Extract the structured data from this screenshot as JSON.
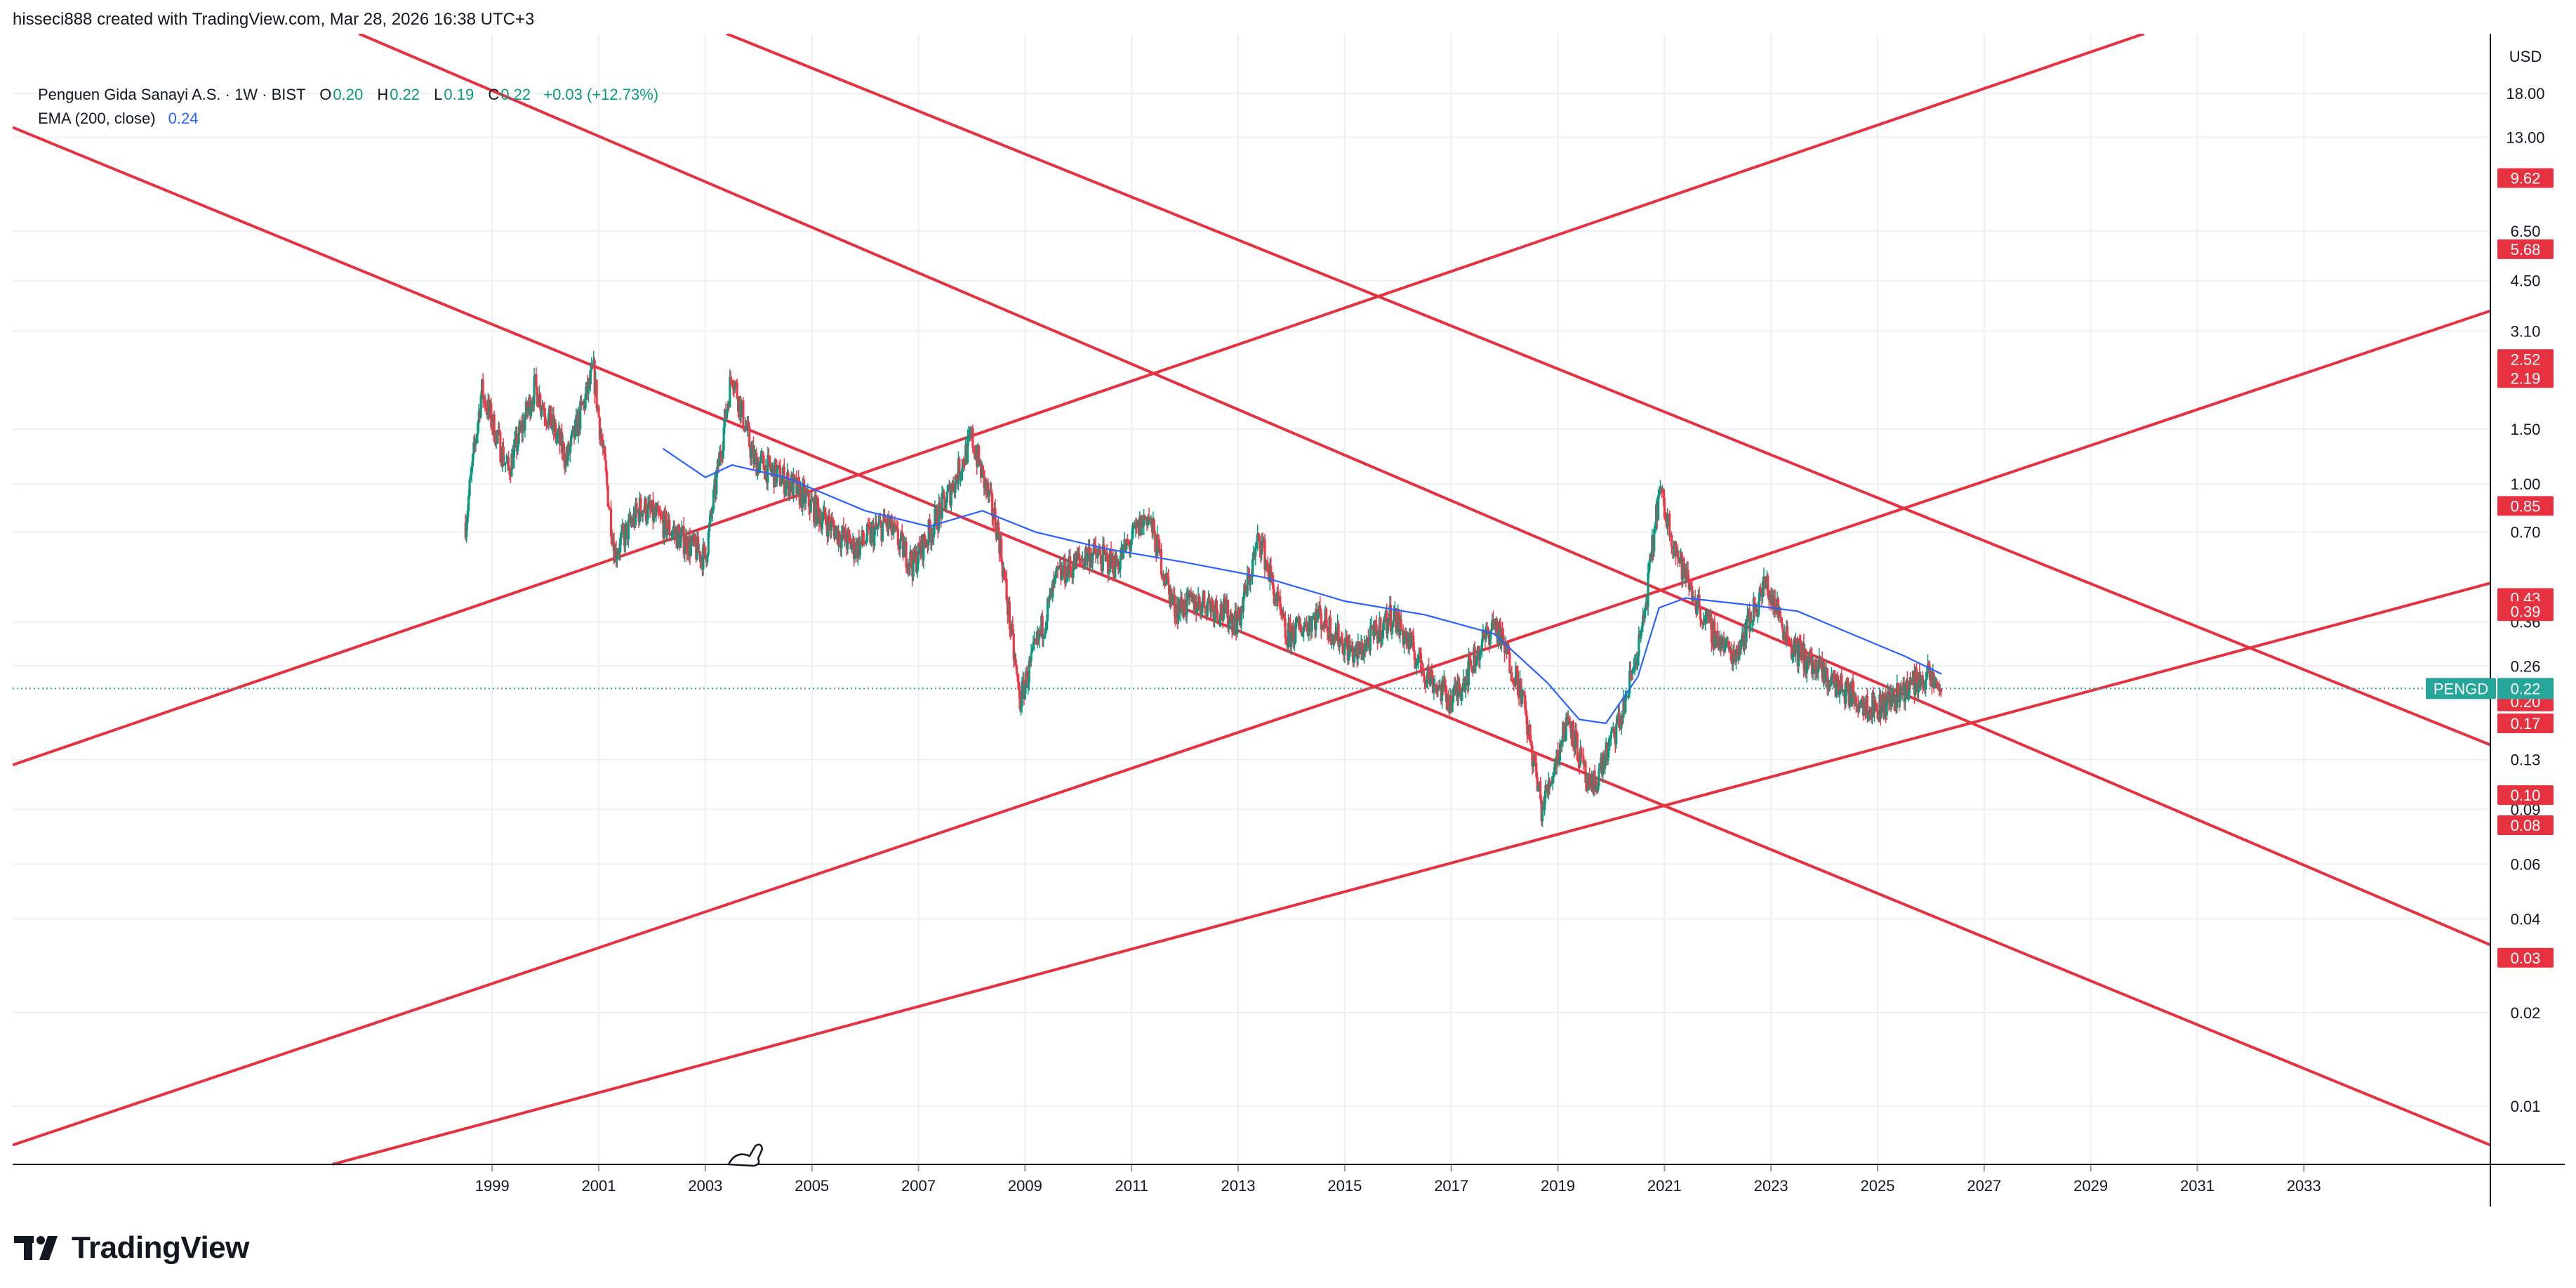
{
  "header": {
    "attribution": "hisseci888 created with TradingView.com, Mar 28, 2026 16:38 UTC+3"
  },
  "legend": {
    "symbol_title": "Penguen Gida Sanayi A.S. · 1W · BIST",
    "open_label": "O",
    "open": "0.20",
    "high_label": "H",
    "high": "0.22",
    "low_label": "L",
    "low": "0.19",
    "close_label": "C",
    "close": "0.22",
    "change": "+0.03 (+12.73%)",
    "ema_label": "EMA (200, close)",
    "ema_value": "0.24"
  },
  "brand": {
    "name": "TradingView"
  },
  "colors": {
    "up": "#089981",
    "down": "#f23645",
    "trendline": "#e53140",
    "ema": "#2962ff",
    "grid": "#eef0f3",
    "axis_text": "#131722",
    "price_tag": "#26a69a"
  },
  "chart_data": {
    "type": "candlestick",
    "title": "Penguen Gida Sanayi A.S. · 1W · BIST",
    "currency": "USD",
    "y_scale": "log",
    "ylim": [
      0.0065,
      28
    ],
    "x_range": [
      1990.0,
      2036.5
    ],
    "x_ticks": [
      "1999",
      "2001",
      "2003",
      "2005",
      "2007",
      "2009",
      "2011",
      "2013",
      "2015",
      "2017",
      "2019",
      "2021",
      "2023",
      "2025",
      "2027",
      "2029",
      "2031",
      "2033"
    ],
    "y_ticks": [
      "18.00",
      "13.00",
      "6.50",
      "4.50",
      "3.10",
      "1.50",
      "1.00",
      "0.70",
      "0.36",
      "0.26",
      "0.13",
      "0.09",
      "0.06",
      "0.04",
      "0.02",
      "0.01"
    ],
    "grid": true,
    "current_price": {
      "symbol": "PENGD",
      "value": "0.22"
    },
    "horizontal_tags": [
      "9.62",
      "5.68",
      "2.52",
      "2.19",
      "0.85",
      "0.43",
      "0.39",
      "0.20",
      "0.17",
      "0.10",
      "0.08",
      "0.03"
    ],
    "price_path": [
      {
        "x": 1998.5,
        "y": 0.75
      },
      {
        "x": 1998.8,
        "y": 2.0
      },
      {
        "x": 1999.3,
        "y": 1.1
      },
      {
        "x": 1999.8,
        "y": 2.05
      },
      {
        "x": 2000.4,
        "y": 1.2
      },
      {
        "x": 2000.9,
        "y": 2.3
      },
      {
        "x": 2001.3,
        "y": 0.6
      },
      {
        "x": 2001.8,
        "y": 0.85
      },
      {
        "x": 2002.4,
        "y": 0.7
      },
      {
        "x": 2003.0,
        "y": 0.58
      },
      {
        "x": 2003.5,
        "y": 2.3
      },
      {
        "x": 2003.9,
        "y": 1.2
      },
      {
        "x": 2004.6,
        "y": 1.0
      },
      {
        "x": 2005.3,
        "y": 0.75
      },
      {
        "x": 2005.8,
        "y": 0.62
      },
      {
        "x": 2006.4,
        "y": 0.75
      },
      {
        "x": 2006.9,
        "y": 0.55
      },
      {
        "x": 2007.6,
        "y": 0.95
      },
      {
        "x": 2008.0,
        "y": 1.4
      },
      {
        "x": 2008.5,
        "y": 0.7
      },
      {
        "x": 2008.9,
        "y": 0.2
      },
      {
        "x": 2009.6,
        "y": 0.5
      },
      {
        "x": 2010.2,
        "y": 0.6
      },
      {
        "x": 2010.7,
        "y": 0.55
      },
      {
        "x": 2011.3,
        "y": 0.8
      },
      {
        "x": 2011.8,
        "y": 0.4
      },
      {
        "x": 2012.4,
        "y": 0.42
      },
      {
        "x": 2013.0,
        "y": 0.36
      },
      {
        "x": 2013.4,
        "y": 0.68
      },
      {
        "x": 2013.9,
        "y": 0.32
      },
      {
        "x": 2014.5,
        "y": 0.38
      },
      {
        "x": 2015.2,
        "y": 0.28
      },
      {
        "x": 2015.9,
        "y": 0.38
      },
      {
        "x": 2016.5,
        "y": 0.25
      },
      {
        "x": 2017.0,
        "y": 0.2
      },
      {
        "x": 2017.8,
        "y": 0.36
      },
      {
        "x": 2018.3,
        "y": 0.22
      },
      {
        "x": 2018.7,
        "y": 0.09
      },
      {
        "x": 2019.2,
        "y": 0.18
      },
      {
        "x": 2019.6,
        "y": 0.1
      },
      {
        "x": 2020.2,
        "y": 0.18
      },
      {
        "x": 2020.6,
        "y": 0.35
      },
      {
        "x": 2020.9,
        "y": 0.95
      },
      {
        "x": 2021.3,
        "y": 0.55
      },
      {
        "x": 2021.8,
        "y": 0.35
      },
      {
        "x": 2022.3,
        "y": 0.28
      },
      {
        "x": 2022.9,
        "y": 0.48
      },
      {
        "x": 2023.4,
        "y": 0.3
      },
      {
        "x": 2023.9,
        "y": 0.25
      },
      {
        "x": 2024.5,
        "y": 0.21
      },
      {
        "x": 2025.0,
        "y": 0.19
      },
      {
        "x": 2025.5,
        "y": 0.22
      },
      {
        "x": 2025.9,
        "y": 0.24
      },
      {
        "x": 2026.2,
        "y": 0.22
      }
    ],
    "ema_200": [
      {
        "x": 2002.2,
        "y": 1.3
      },
      {
        "x": 2003.0,
        "y": 1.05
      },
      {
        "x": 2003.5,
        "y": 1.15
      },
      {
        "x": 2004.5,
        "y": 1.05
      },
      {
        "x": 2006.0,
        "y": 0.82
      },
      {
        "x": 2007.2,
        "y": 0.73
      },
      {
        "x": 2008.2,
        "y": 0.82
      },
      {
        "x": 2009.2,
        "y": 0.7
      },
      {
        "x": 2010.5,
        "y": 0.62
      },
      {
        "x": 2012.0,
        "y": 0.56
      },
      {
        "x": 2013.5,
        "y": 0.5
      },
      {
        "x": 2015.0,
        "y": 0.42
      },
      {
        "x": 2016.5,
        "y": 0.38
      },
      {
        "x": 2017.8,
        "y": 0.33
      },
      {
        "x": 2018.8,
        "y": 0.23
      },
      {
        "x": 2019.4,
        "y": 0.175
      },
      {
        "x": 2019.9,
        "y": 0.17
      },
      {
        "x": 2020.5,
        "y": 0.24
      },
      {
        "x": 2020.9,
        "y": 0.4
      },
      {
        "x": 2021.4,
        "y": 0.43
      },
      {
        "x": 2022.5,
        "y": 0.41
      },
      {
        "x": 2023.5,
        "y": 0.39
      },
      {
        "x": 2024.5,
        "y": 0.33
      },
      {
        "x": 2025.5,
        "y": 0.28
      },
      {
        "x": 2026.2,
        "y": 0.245
      }
    ],
    "trendlines": [
      {
        "x1": 1990.0,
        "y1": 14.0,
        "x2": 2036.5,
        "y2": 0.0075
      },
      {
        "x1": 1996.5,
        "y1": 28.0,
        "x2": 2036.5,
        "y2": 0.033
      },
      {
        "x1": 2003.4,
        "y1": 28.0,
        "x2": 2036.5,
        "y2": 0.145
      },
      {
        "x1": 1990.0,
        "y1": 0.125,
        "x2": 2030.0,
        "y2": 28.0
      },
      {
        "x1": 1990.0,
        "y1": 0.0075,
        "x2": 2036.5,
        "y2": 3.6
      },
      {
        "x1": 1996.0,
        "y1": 0.0065,
        "x2": 2036.5,
        "y2": 0.48
      }
    ]
  }
}
